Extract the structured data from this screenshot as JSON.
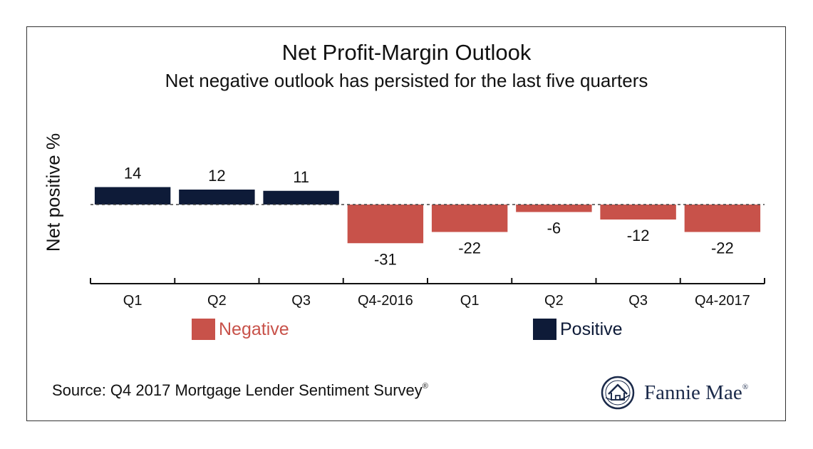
{
  "colors": {
    "positive": "#0e1b38",
    "negative": "#c8524a",
    "axis": "#111111",
    "frame": "#333333"
  },
  "chart_data": {
    "type": "bar",
    "title": "Net Profit-Margin Outlook",
    "subtitle": "Net negative outlook has persisted for the last five quarters",
    "ylabel": "Net positive %",
    "categories": [
      "Q1",
      "Q2",
      "Q3",
      "Q4-2016",
      "Q1",
      "Q2",
      "Q3",
      "Q4-2017"
    ],
    "values": [
      14,
      12,
      11,
      -31,
      -22,
      -6,
      -12,
      -22
    ],
    "legend": [
      {
        "label": "Negative",
        "color": "#c8524a"
      },
      {
        "label": "Positive",
        "color": "#0e1b38"
      }
    ],
    "zero_line": "dashed",
    "grid": false
  },
  "footer": {
    "source": "Source: Q4 2017 Mortgage Lender Sentiment Survey",
    "source_mark": "®"
  },
  "brand": {
    "name": "Fannie Mae",
    "mark": "®",
    "icon": "house-seal-icon"
  }
}
